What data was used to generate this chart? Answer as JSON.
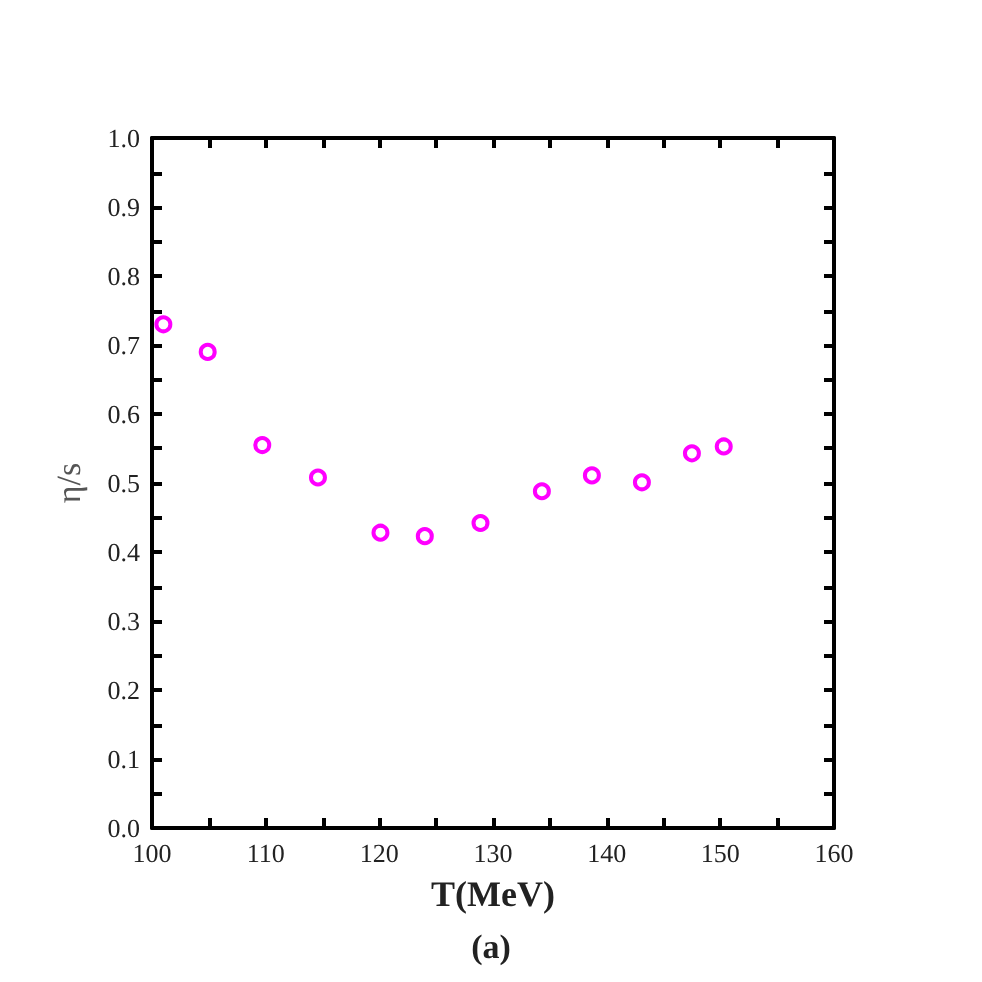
{
  "chart_data": {
    "type": "scatter",
    "xlabel": "T(MeV)",
    "ylabel": "η/s",
    "annotations": [
      "(a)"
    ],
    "x": [
      101,
      104.9,
      109.7,
      114.6,
      120.1,
      124,
      128.9,
      134.3,
      138.7,
      143.1,
      147.5,
      150.3
    ],
    "series": [
      {
        "color": "#ff00ff",
        "values": [
          0.73,
          0.69,
          0.555,
          0.508,
          0.428,
          0.423,
          0.442,
          0.488,
          0.511,
          0.501,
          0.543,
          0.553
        ]
      }
    ],
    "xlim": [
      100,
      160
    ],
    "xticks": [
      100,
      {
        "value": 105,
        "label": null
      },
      110,
      {
        "value": 115,
        "label": null
      },
      120,
      {
        "value": 125,
        "label": null
      },
      130,
      {
        "value": 135,
        "label": null
      },
      140,
      {
        "value": 145,
        "label": null
      },
      150,
      {
        "value": 155,
        "label": null
      },
      160
    ],
    "ylim": [
      0,
      1
    ],
    "yticks": [
      {
        "value": 0,
        "label": "0.0"
      },
      {
        "value": 0.05,
        "label": null
      },
      0.1,
      {
        "value": 0.15,
        "label": null
      },
      0.2,
      {
        "value": 0.25,
        "label": null
      },
      0.3,
      {
        "value": 0.35,
        "label": null
      },
      0.4,
      {
        "value": 0.45,
        "label": null
      },
      0.5,
      {
        "value": 0.55,
        "label": null
      },
      0.6,
      {
        "value": 0.65,
        "label": null
      },
      0.7,
      {
        "value": 0.75,
        "label": null
      },
      0.8,
      {
        "value": 0.85,
        "label": null
      },
      0.9,
      {
        "value": 0.95,
        "label": null
      },
      {
        "value": 1,
        "label": "1.0"
      }
    ],
    "marker": "circle"
  }
}
